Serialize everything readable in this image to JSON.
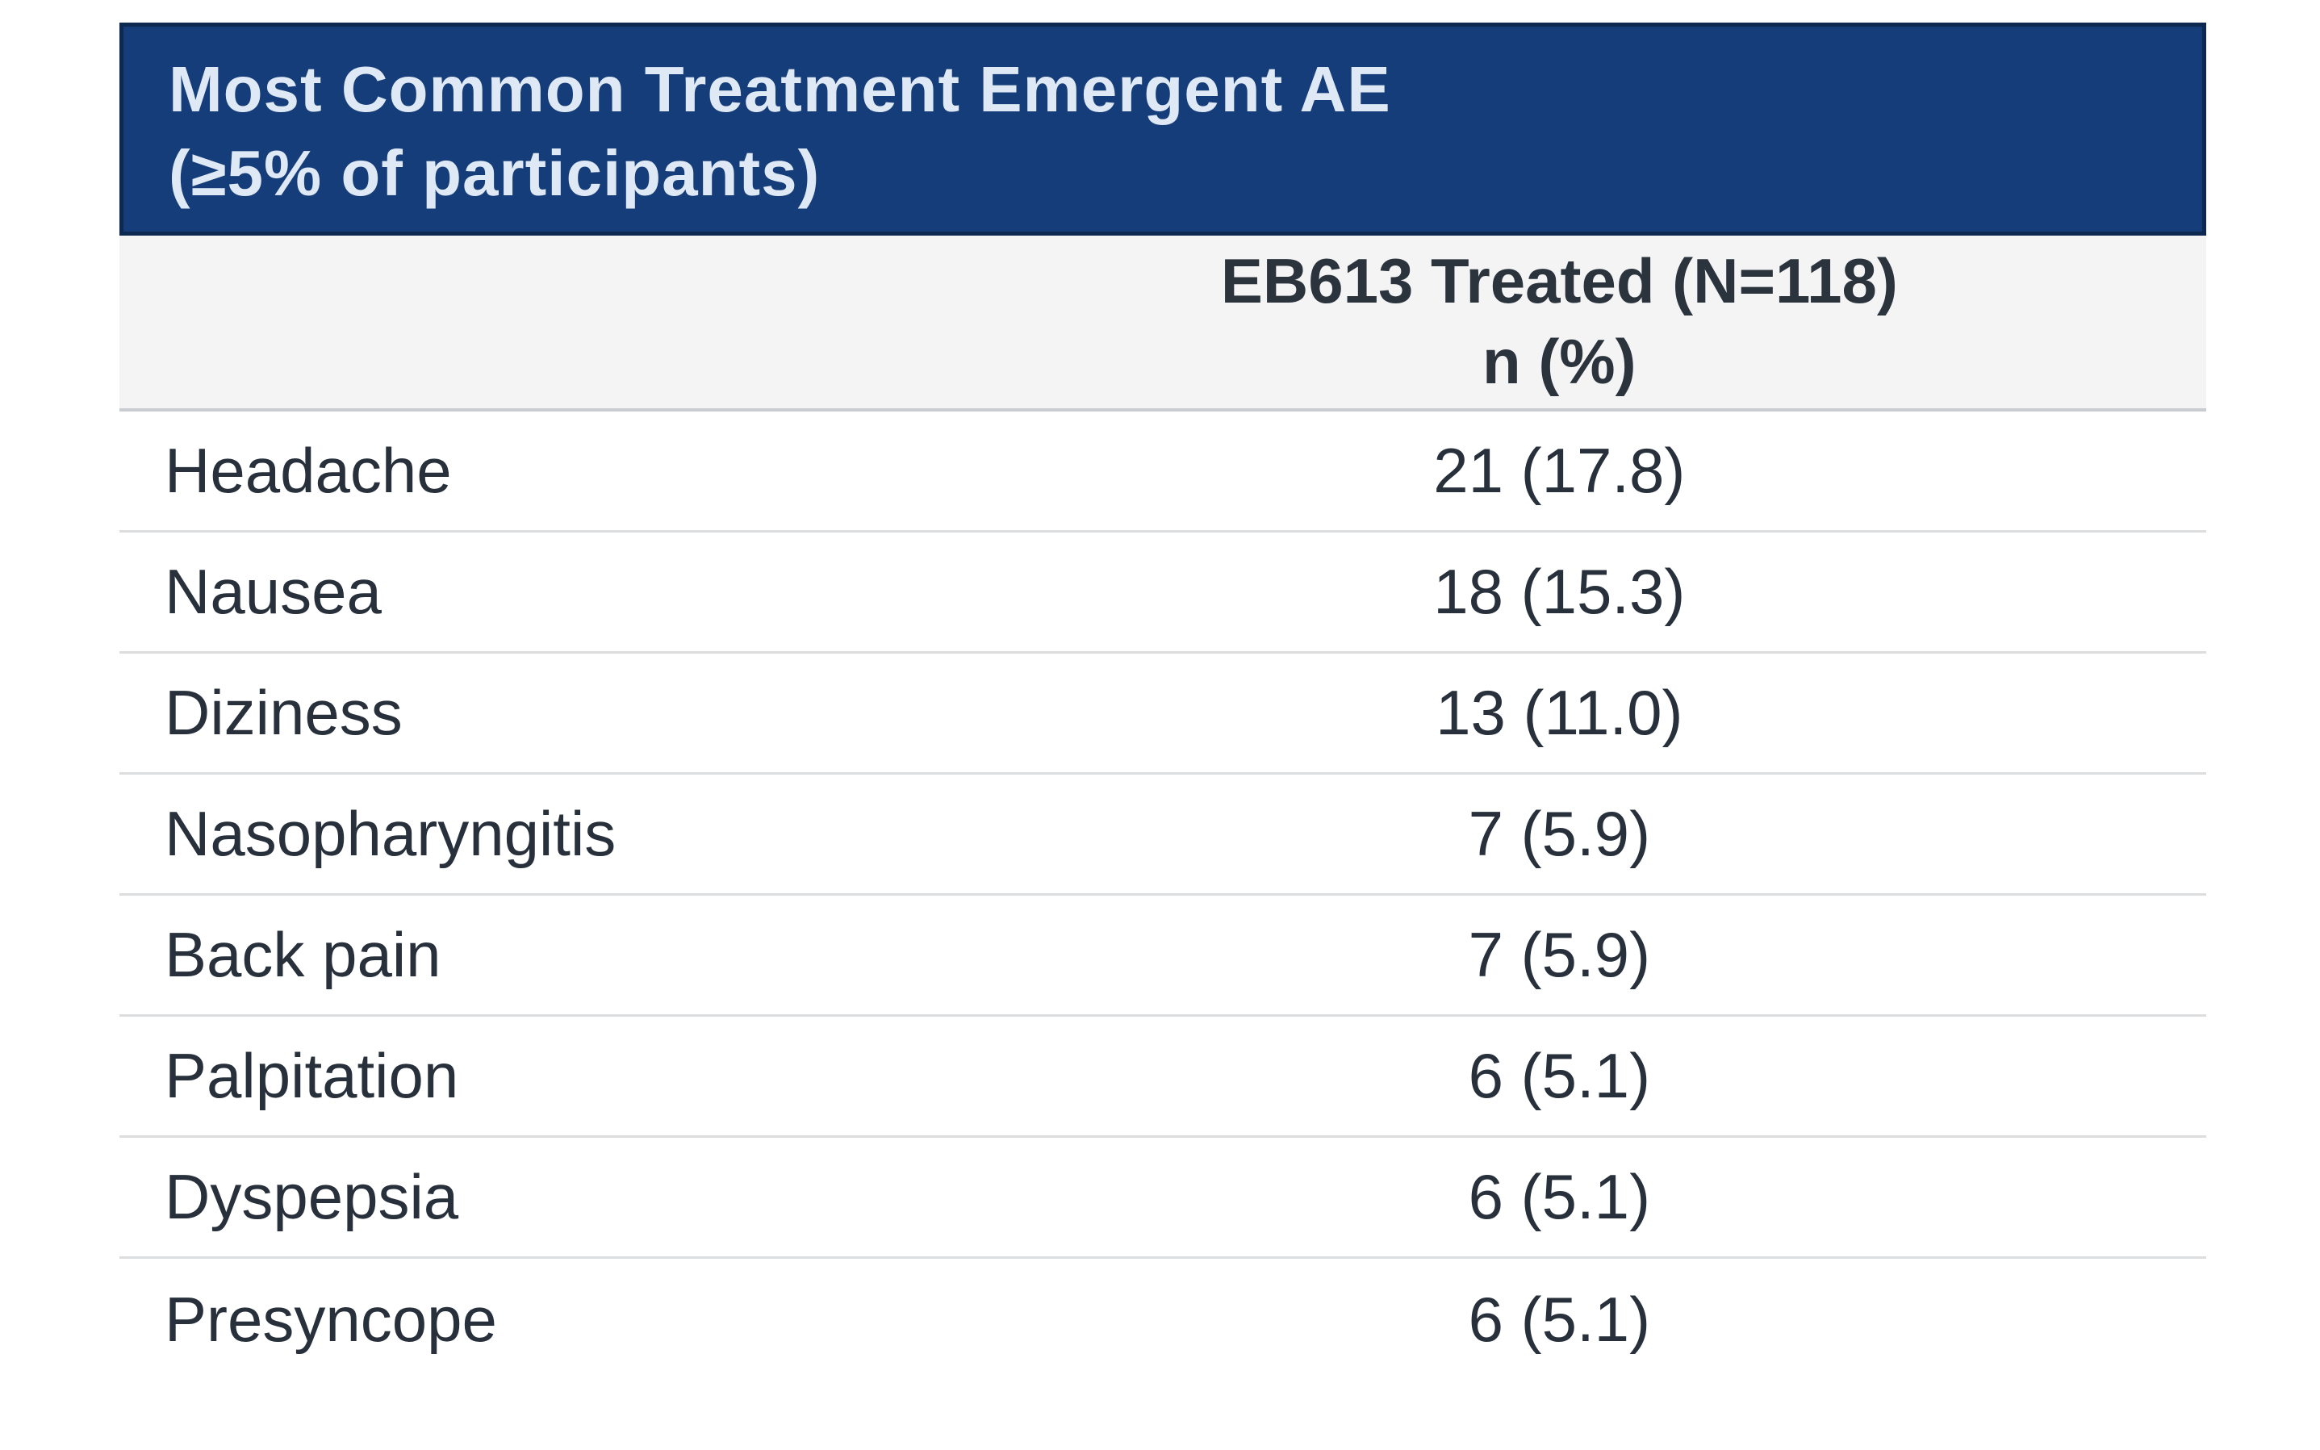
{
  "table": {
    "title_line1": "Most Common Treatment Emergent AE",
    "title_line2": "(≥5% of participants)",
    "column_header_line1": "EB613 Treated (N=118)",
    "column_header_line2": "n (%)",
    "rows": [
      {
        "label": "Headache",
        "value": "21 (17.8)"
      },
      {
        "label": "Nausea",
        "value": "18 (15.3)"
      },
      {
        "label": "Diziness",
        "value": "13 (11.0)"
      },
      {
        "label": "Nasopharyngitis",
        "value": "7 (5.9)"
      },
      {
        "label": "Back pain",
        "value": "7 (5.9)"
      },
      {
        "label": "Palpitation",
        "value": "6 (5.1)"
      },
      {
        "label": "Dyspepsia",
        "value": "6 (5.1)"
      },
      {
        "label": "Presyncope",
        "value": "6 (5.1)"
      }
    ]
  },
  "colors": {
    "title_bar_bg": "#153d7a",
    "title_bar_border": "#0d2950",
    "title_text": "#dfe9f5",
    "column_header_bg": "#f4f4f5",
    "body_text": "#27303b",
    "divider": "#dcdddf"
  }
}
